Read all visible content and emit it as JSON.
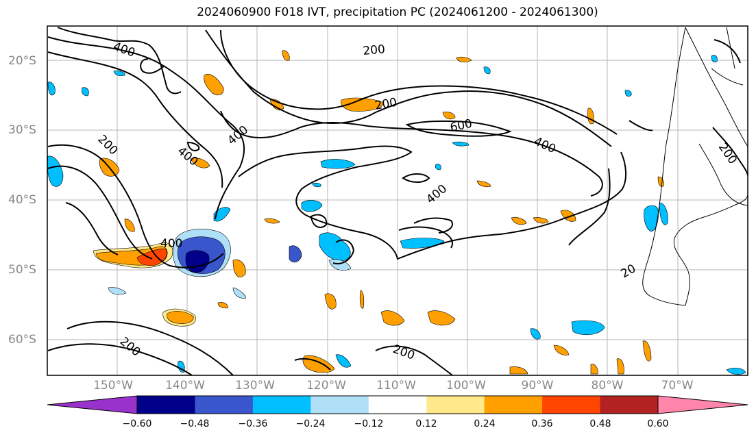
{
  "title": "2024060900 F018 IVT, precipitation PC (2024061200 - 2024061300)",
  "lon_labels": [
    "150°W",
    "140°W",
    "130°W",
    "120°W",
    "110°W",
    "100°W",
    "90°W",
    "80°W",
    "70°W"
  ],
  "lat_labels": [
    "20°S",
    "30°S",
    "40°S",
    "50°S",
    "60°S"
  ],
  "contour_labels": [
    "400",
    "200",
    "200",
    "400",
    "400",
    "200",
    "600",
    "400",
    "400",
    "400",
    "200",
    "20"
  ],
  "colorbar": {
    "tick_labels": [
      "−0.60",
      "−0.48",
      "−0.36",
      "−0.24",
      "−0.12",
      "0.12",
      "0.24",
      "0.36",
      "0.48",
      "0.60"
    ],
    "colors": [
      "#9932cc",
      "#00008b",
      "#3a56cc",
      "#00bfff",
      "#b0e0f8",
      "#ffffff",
      "#ffe98a",
      "#ffa000",
      "#ff4500",
      "#b22222",
      "#ff85aa"
    ]
  }
}
